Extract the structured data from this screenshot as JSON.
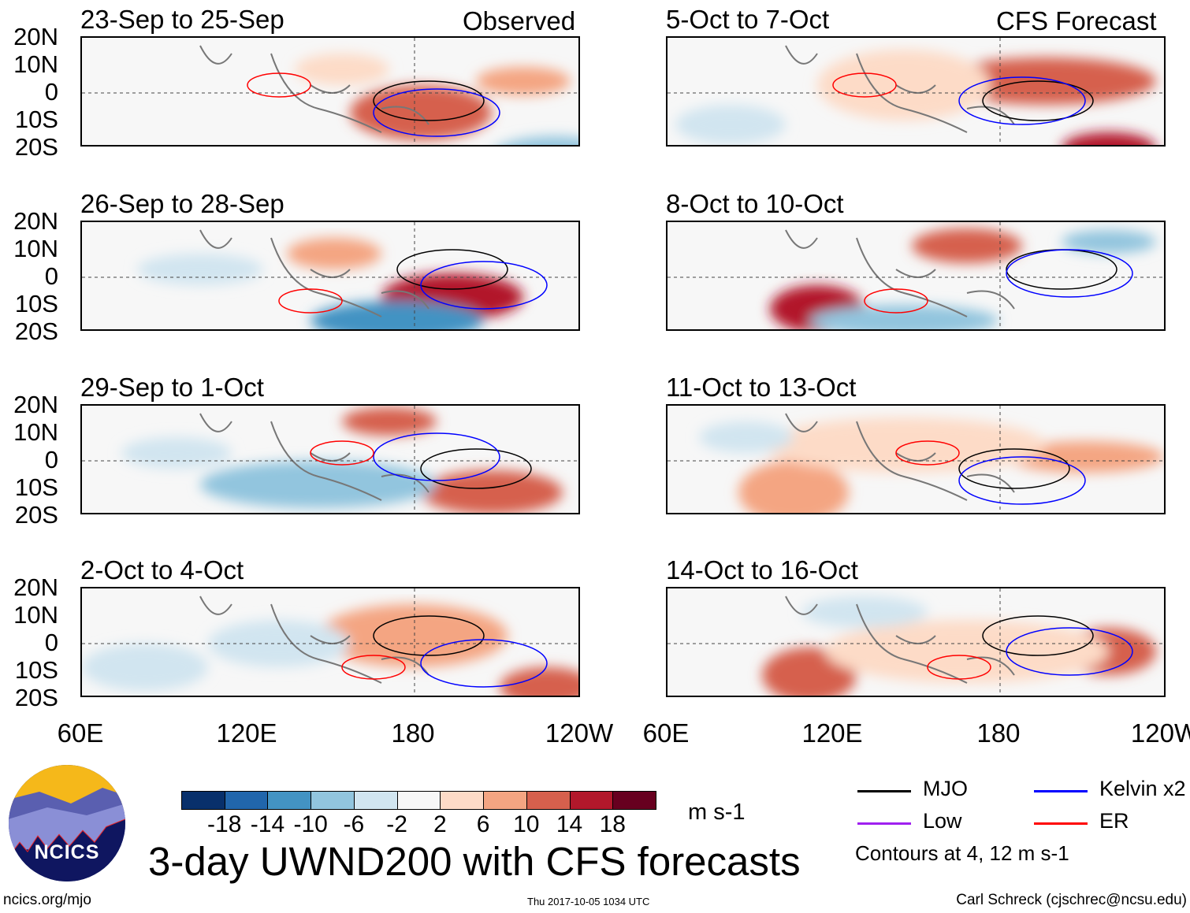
{
  "chart_data": {
    "type": "heatmap",
    "title": "3-day UWND200 with CFS forecasts",
    "units": "m s-1",
    "columns": {
      "left": "Observed",
      "right": "CFS Forecast"
    },
    "panels": [
      {
        "title": "23-Sep to 25-Sep",
        "column": "left"
      },
      {
        "title": "26-Sep to 28-Sep",
        "column": "left"
      },
      {
        "title": "29-Sep to 1-Oct",
        "column": "left"
      },
      {
        "title": "2-Oct to 4-Oct",
        "column": "left"
      },
      {
        "title": "5-Oct to 7-Oct",
        "column": "right"
      },
      {
        "title": "8-Oct to 10-Oct",
        "column": "right"
      },
      {
        "title": "11-Oct to 13-Oct",
        "column": "right"
      },
      {
        "title": "14-Oct to 16-Oct",
        "column": "right"
      }
    ],
    "y_ticks": [
      "20N",
      "10N",
      "0",
      "10S",
      "20S"
    ],
    "x_ticks": [
      "60E",
      "120E",
      "180",
      "120W"
    ],
    "colorbar": {
      "labels": [
        "-18",
        "-14",
        "-10",
        "-6",
        "-2",
        "2",
        "6",
        "10",
        "14",
        "18"
      ],
      "colors": [
        "#08306b",
        "#2166ac",
        "#4393c3",
        "#92c5de",
        "#d1e5f0",
        "#f7f7f7",
        "#fddbc7",
        "#f4a582",
        "#d6604d",
        "#b2182b",
        "#67001f"
      ]
    },
    "legend": [
      {
        "label": "MJO",
        "color": "#000000"
      },
      {
        "label": "Kelvin x2",
        "color": "#0000ff"
      },
      {
        "label": "Low",
        "color": "#a020f0"
      },
      {
        "label": "ER",
        "color": "#ff0000"
      }
    ],
    "contour_note": "Contours at 4, 12 m s-1"
  },
  "footer": {
    "logo_text": "NCICS",
    "url": "ncics.org/mjo",
    "timestamp": "Thu 2017-10-05 1034 UTC",
    "author": "Carl Schreck (cjschrec@ncsu.edu)"
  }
}
